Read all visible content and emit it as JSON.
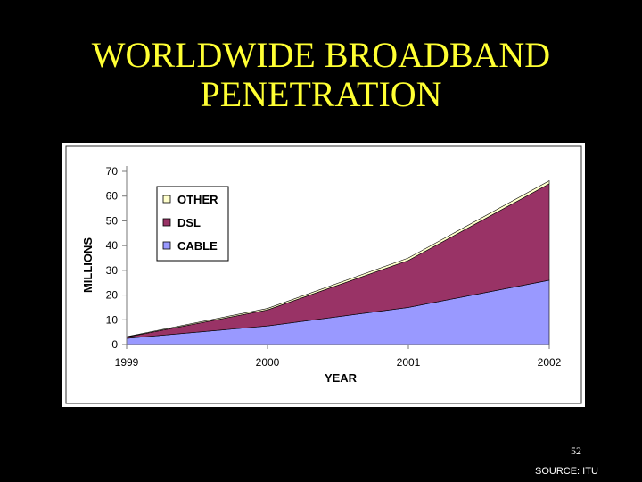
{
  "title_line1": "WORLDWIDE BROADBAND",
  "title_line2": "PENETRATION",
  "page_number": "52",
  "source": "SOURCE: ITU",
  "chart_data": {
    "type": "area",
    "stacked": true,
    "x": [
      "1999",
      "2000",
      "2001",
      "2002"
    ],
    "xlabel": "YEAR",
    "ylabel": "MILLIONS",
    "ylim": [
      0,
      70
    ],
    "yticks": [
      0,
      10,
      20,
      30,
      40,
      50,
      60,
      70
    ],
    "legend_position": "top-left",
    "series": [
      {
        "name": "CABLE",
        "values": [
          2.5,
          7.5,
          15,
          26
        ],
        "color": "#9999ff"
      },
      {
        "name": "DSL",
        "values": [
          0.5,
          6.5,
          19,
          39
        ],
        "color": "#993366"
      },
      {
        "name": "OTHER",
        "values": [
          0.2,
          0.6,
          1,
          1.2
        ],
        "color": "#ffffcc"
      }
    ],
    "legend_order": [
      "OTHER",
      "DSL",
      "CABLE"
    ]
  }
}
